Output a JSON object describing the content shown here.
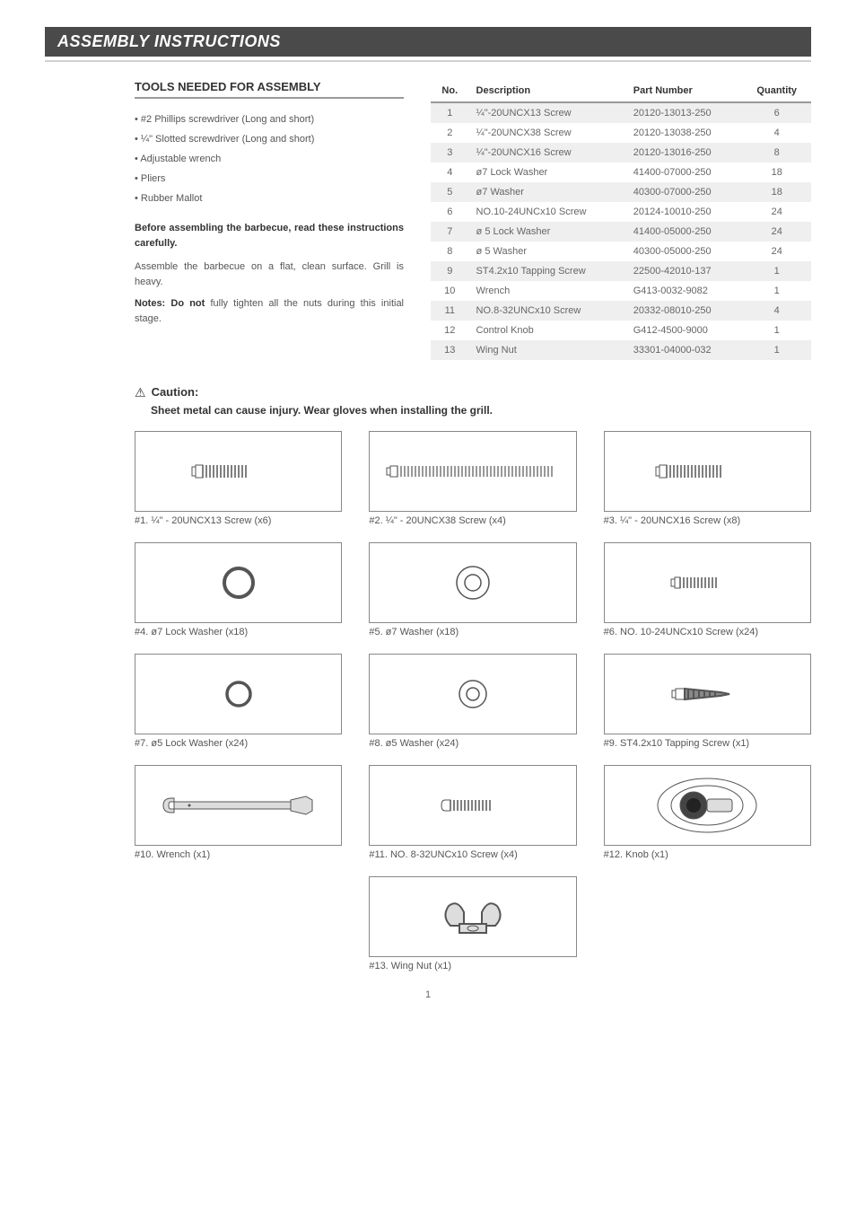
{
  "section_title": "ASSEMBLY INSTRUCTIONS",
  "tools_heading": "TOOLS NEEDED FOR ASSEMBLY",
  "tools": [
    "#2 Phillips screwdriver (Long and short)",
    "¼\" Slotted screwdriver (Long and short)",
    "Adjustable wrench",
    "Pliers",
    "Rubber Mallot"
  ],
  "before_text": "Before assembling the barbecue, read these instructions carefully.",
  "assemble_text": "Assemble the barbecue on a flat, clean surface. Grill is heavy.",
  "notes_bold": "Notes: Do not",
  "notes_rest": " fully tighten all the nuts during this initial stage.",
  "table_headers": {
    "no": "No.",
    "desc": "Description",
    "pn": "Part Number",
    "qty": "Quantity"
  },
  "parts_table": [
    {
      "no": "1",
      "desc": "¼\"-20UNCX13 Screw",
      "pn": "20120-13013-250",
      "qty": "6"
    },
    {
      "no": "2",
      "desc": "¼\"-20UNCX38 Screw",
      "pn": "20120-13038-250",
      "qty": "4"
    },
    {
      "no": "3",
      "desc": "¼\"-20UNCX16 Screw",
      "pn": "20120-13016-250",
      "qty": "8"
    },
    {
      "no": "4",
      "desc": "ø7 Lock Washer",
      "pn": "41400-07000-250",
      "qty": "18"
    },
    {
      "no": "5",
      "desc": "ø7 Washer",
      "pn": "40300-07000-250",
      "qty": "18"
    },
    {
      "no": "6",
      "desc": "NO.10-24UNCx10 Screw",
      "pn": "20124-10010-250",
      "qty": "24"
    },
    {
      "no": "7",
      "desc": "ø 5 Lock Washer",
      "pn": "41400-05000-250",
      "qty": "24"
    },
    {
      "no": "8",
      "desc": "ø 5 Washer",
      "pn": "40300-05000-250",
      "qty": "24"
    },
    {
      "no": "9",
      "desc": "ST4.2x10 Tapping Screw",
      "pn": "22500-42010-137",
      "qty": "1"
    },
    {
      "no": "10",
      "desc": "Wrench",
      "pn": "G413-0032-9082",
      "qty": "1"
    },
    {
      "no": "11",
      "desc": "NO.8-32UNCx10 Screw",
      "pn": "20332-08010-250",
      "qty": "4"
    },
    {
      "no": "12",
      "desc": "Control Knob",
      "pn": "G412-4500-9000",
      "qty": "1"
    },
    {
      "no": "13",
      "desc": "Wing Nut",
      "pn": "33301-04000-032",
      "qty": "1"
    }
  ],
  "caution_label": "Caution:",
  "caution_sub": "Sheet metal can cause injury. Wear gloves when installing the grill.",
  "part_captions": {
    "p1": "#1. ¼\" - 20UNCX13 Screw (x6)",
    "p2": "#2. ¼\" - 20UNCX38 Screw (x4)",
    "p3": "#3. ¼\" - 20UNCX16 Screw (x8)",
    "p4": "#4. ø7 Lock Washer (x18)",
    "p5": "#5. ø7 Washer (x18)",
    "p6": "#6. NO. 10-24UNCx10 Screw (x24)",
    "p7": "#7. ø5 Lock Washer (x24)",
    "p8": "#8. ø5 Washer (x24)",
    "p9": "#9. ST4.2x10 Tapping Screw (x1)",
    "p10": "#10. Wrench (x1)",
    "p11": "#11. NO. 8-32UNCx10 Screw (x4)",
    "p12": "#12. Knob (x1)",
    "p13": "#13. Wing Nut (x1)"
  },
  "page_num": "1",
  "colors": {
    "header_bg": "#4a4a4a",
    "gray_line": "#d0d0d0",
    "text_muted": "#666666",
    "table_stripe": "#efefef",
    "border": "#888888"
  }
}
